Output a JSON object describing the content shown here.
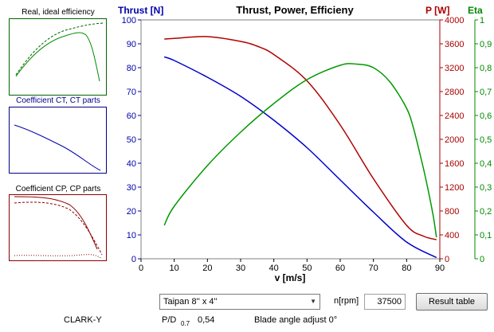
{
  "thumbnails": [
    {
      "title": "Real, ideal efficiency",
      "title_color": "#000000",
      "border": "#006400"
    },
    {
      "title": "Coefficient CT, CT parts",
      "title_color": "#00008b",
      "border": "#00008b"
    },
    {
      "title": "Coefficient CP, CP parts",
      "title_color": "#000000",
      "border": "#8b0000"
    }
  ],
  "chart_data": {
    "type": "line",
    "title": "Thrust, Power, Efficieny",
    "xlabel": "v [m/s]",
    "xlim": [
      0,
      90
    ],
    "x_ticks": [
      "0",
      "10",
      "20",
      "30",
      "40",
      "50",
      "60",
      "70",
      "80",
      "90"
    ],
    "axes": {
      "thrust": {
        "label": "Thrust [N]",
        "color": "#0000aa",
        "lim": [
          0,
          100
        ],
        "ticks": [
          "0",
          "10",
          "20",
          "30",
          "40",
          "50",
          "60",
          "70",
          "80",
          "90",
          "100"
        ]
      },
      "power": {
        "label": "P [W]",
        "color": "#aa0000",
        "lim": [
          0,
          4000
        ],
        "ticks": [
          "0",
          "400",
          "800",
          "1200",
          "1600",
          "2000",
          "2400",
          "2800",
          "3200",
          "3600",
          "4000"
        ]
      },
      "eta": {
        "label": "Eta",
        "color": "#008800",
        "lim": [
          0,
          1
        ],
        "ticks": [
          "0",
          "0,1",
          "0,2",
          "0,3",
          "0,4",
          "0,5",
          "0,6",
          "0,7",
          "0,8",
          "0,9",
          "1"
        ]
      }
    },
    "series": [
      {
        "axis": "thrust",
        "color": "#0000cc",
        "x": [
          7,
          10,
          20,
          30,
          40,
          50,
          60,
          70,
          80,
          89
        ],
        "y": [
          84.5,
          83,
          76,
          68,
          58,
          46.5,
          33,
          19.5,
          7,
          0.5
        ]
      },
      {
        "axis": "power",
        "color": "#b00000",
        "x": [
          7,
          10,
          20,
          30,
          35,
          40,
          50,
          60,
          70,
          80,
          85,
          89
        ],
        "y": [
          3680,
          3690,
          3720,
          3640,
          3560,
          3420,
          2980,
          2240,
          1340,
          560,
          380,
          320
        ]
      },
      {
        "axis": "eta",
        "color": "#009900",
        "x": [
          7,
          10,
          20,
          30,
          40,
          50,
          60,
          65,
          70,
          75,
          80,
          82,
          84,
          86,
          88,
          89
        ],
        "y": [
          0.14,
          0.22,
          0.39,
          0.53,
          0.65,
          0.75,
          0.81,
          0.815,
          0.8,
          0.74,
          0.63,
          0.55,
          0.44,
          0.32,
          0.18,
          0.09
        ]
      }
    ]
  },
  "controls": {
    "propeller_select": "Taipan 8'' x 4''",
    "rpm_label": "n[rpm]",
    "rpm_value": "37500",
    "result_button": "Result table"
  },
  "footer": {
    "airfoil": "CLARK-Y",
    "pd_label": "P/D",
    "pd_sub": "0.7",
    "pd_value": "0,54",
    "blade_angle": "Blade angle adjust 0°"
  }
}
